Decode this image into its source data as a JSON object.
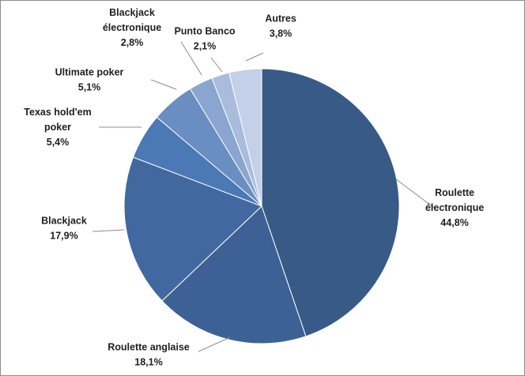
{
  "chart_data": {
    "type": "pie",
    "title": "",
    "start_angle_deg": 0,
    "direction": "clockwise",
    "slices": [
      {
        "name_lines": [
          "Roulette",
          "électronique"
        ],
        "value": 44.8,
        "value_label": "44,8%",
        "color": "#375a86"
      },
      {
        "name_lines": [
          "Roulette anglaise"
        ],
        "value": 18.1,
        "value_label": "18,1%",
        "color": "#3d6194"
      },
      {
        "name_lines": [
          "Blackjack"
        ],
        "value": 17.9,
        "value_label": "17,9%",
        "color": "#42699f"
      },
      {
        "name_lines": [
          "Texas hold'em",
          "poker"
        ],
        "value": 5.4,
        "value_label": "5,4%",
        "color": "#4a79b5"
      },
      {
        "name_lines": [
          "Ultimate poker"
        ],
        "value": 5.1,
        "value_label": "5,1%",
        "color": "#6a8ec2"
      },
      {
        "name_lines": [
          "Blackjack",
          "électronique"
        ],
        "value": 2.8,
        "value_label": "2,8%",
        "color": "#8aa5cf"
      },
      {
        "name_lines": [
          "Punto Banco"
        ],
        "value": 2.1,
        "value_label": "2,1%",
        "color": "#a9bcdc"
      },
      {
        "name_lines": [
          "Autres"
        ],
        "value": 3.8,
        "value_label": "3,8%",
        "color": "#c4d0e7"
      }
    ],
    "legend": "none",
    "labels": "outside-with-leader-lines"
  }
}
